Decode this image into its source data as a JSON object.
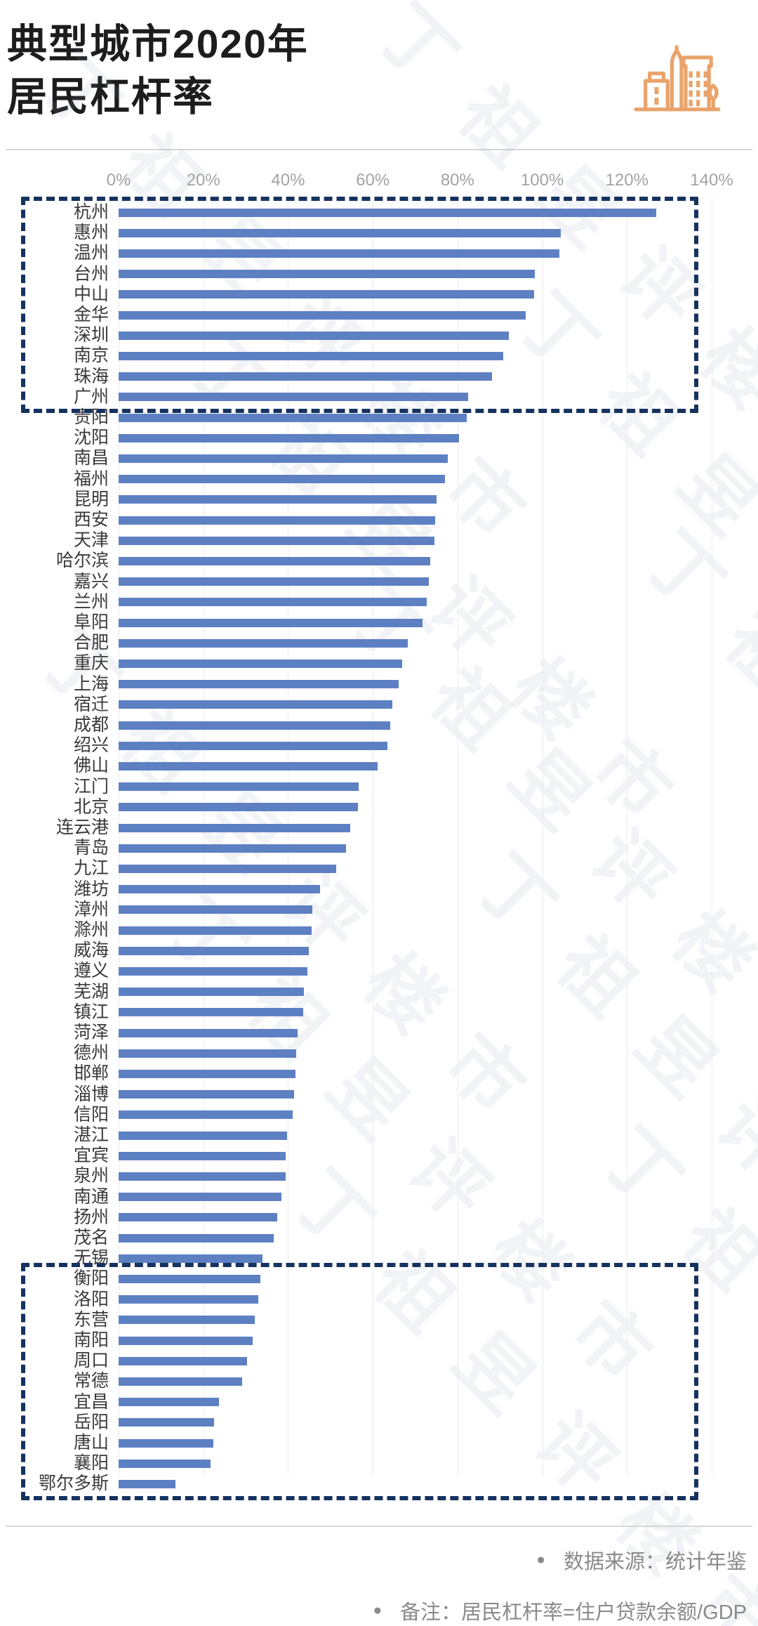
{
  "header": {
    "title_lines": [
      "典型城市2020年",
      "居民杠杆率"
    ],
    "icon": "city-buildings-icon",
    "icon_color": "#e9a36b"
  },
  "colors": {
    "bar": "#5d80c3",
    "highlight_box": "#16325f",
    "axis_text": "#a3a3a3",
    "label_text": "#3a3a3a",
    "gridline": "#ebebee",
    "divider": "#d6d6d6",
    "footer_text": "#8a8a8a"
  },
  "watermark": {
    "text": "丁祖昱评楼市"
  },
  "chart_data": {
    "type": "bar",
    "orientation": "horizontal",
    "title": "典型城市2020年居民杠杆率",
    "unit": "%",
    "xlim": [
      0,
      140
    ],
    "x_ticks": [
      "0%",
      "20%",
      "40%",
      "60%",
      "80%",
      "100%",
      "120%",
      "140%"
    ],
    "grid": true,
    "categories": [
      "杭州",
      "惠州",
      "温州",
      "台州",
      "中山",
      "金华",
      "深圳",
      "南京",
      "珠海",
      "广州",
      "贵阳",
      "沈阳",
      "南昌",
      "福州",
      "昆明",
      "西安",
      "天津",
      "哈尔滨",
      "嘉兴",
      "兰州",
      "阜阳",
      "合肥",
      "重庆",
      "上海",
      "宿迁",
      "成都",
      "绍兴",
      "佛山",
      "江门",
      "北京",
      "连云港",
      "青岛",
      "九江",
      "潍坊",
      "漳州",
      "滁州",
      "威海",
      "遵义",
      "芜湖",
      "镇江",
      "菏泽",
      "德州",
      "邯郸",
      "淄博",
      "信阳",
      "湛江",
      "宜宾",
      "泉州",
      "南通",
      "扬州",
      "茂名",
      "无锡",
      "衡阳",
      "洛阳",
      "东营",
      "南阳",
      "周口",
      "常德",
      "宜昌",
      "岳阳",
      "唐山",
      "襄阳",
      "鄂尔多斯"
    ],
    "values": [
      126.9,
      104.3,
      104,
      98.3,
      98,
      96.1,
      92.2,
      90.8,
      88.2,
      82.5,
      82.1,
      80.4,
      77.7,
      77.1,
      75,
      74.7,
      74.5,
      73.5,
      73.3,
      72.7,
      71.7,
      68.2,
      67,
      66.1,
      64.6,
      64.1,
      63.5,
      61.1,
      56.6,
      56.5,
      54.6,
      53.7,
      51.4,
      47.6,
      45.7,
      45.5,
      44.9,
      44.6,
      43.8,
      43.5,
      42.2,
      41.9,
      41.8,
      41.4,
      41.1,
      39.7,
      39.5,
      39.4,
      38.4,
      37.5,
      36.6,
      34,
      33.5,
      33,
      32.2,
      31.6,
      30.3,
      29.1,
      23.7,
      22.6,
      22.4,
      21.7,
      13.4
    ],
    "highlight_boxes": [
      {
        "label": "top-group",
        "from": "杭州",
        "to": "广州",
        "start_index": 0,
        "end_index": 9
      },
      {
        "label": "bottom-group",
        "from": "衡阳",
        "to": "鄂尔多斯",
        "start_index": 52,
        "end_index": 62
      }
    ]
  },
  "footer": {
    "source_label": "数据来源：统计年鉴",
    "note_label": "备注：居民杠杆率=住户贷款余额/GDP"
  }
}
